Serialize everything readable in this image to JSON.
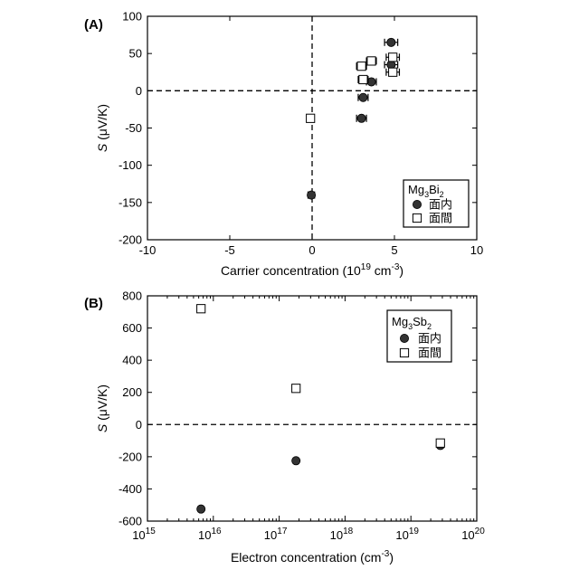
{
  "chart_data": [
    {
      "panel": "(A)",
      "type": "scatter",
      "xlabel": "Carrier concentration (10",
      "xlabel_exp": "19",
      "xlabel_unit": " cm",
      "xlabel_unit_exp": "-3",
      "xlabel_close": ")",
      "ylabel_italic": "S",
      "ylabel_unit": " (μV/K)",
      "xlim": [
        -10,
        10
      ],
      "ylim": [
        -200,
        100
      ],
      "x_ticks": [
        -10,
        -5,
        0,
        5,
        10
      ],
      "y_ticks": [
        -200,
        -150,
        -100,
        -50,
        0,
        50,
        100
      ],
      "grid": false,
      "legend_placement": "lower-right",
      "legend_title": "Mg",
      "legend_title_sub1": "3",
      "legend_title_mid": "Bi",
      "legend_title_sub2": "2",
      "series": [
        {
          "name": "面内",
          "marker": "filled-circle",
          "points": [
            {
              "x": 4.8,
              "y": 65,
              "xerr": 0.4
            },
            {
              "x": 4.8,
              "y": 35,
              "xerr": 0.4
            },
            {
              "x": 3.6,
              "y": 12,
              "xerr": 0.3
            },
            {
              "x": 3.1,
              "y": -9,
              "xerr": 0.3
            },
            {
              "x": 3.0,
              "y": -37,
              "xerr": 0.3
            },
            {
              "x": -0.05,
              "y": -140,
              "xerr": 0.2
            }
          ]
        },
        {
          "name": "面間",
          "marker": "open-square",
          "points": [
            {
              "x": 4.9,
              "y": 45,
              "xerr": 0.4
            },
            {
              "x": 4.9,
              "y": 25,
              "xerr": 0.4
            },
            {
              "x": 3.6,
              "y": 40,
              "xerr": 0.3
            },
            {
              "x": 3.0,
              "y": 33,
              "xerr": 0.3
            },
            {
              "x": 3.1,
              "y": 15,
              "xerr": 0.3
            },
            {
              "x": -0.1,
              "y": -37,
              "xerr": 0.2
            }
          ]
        }
      ]
    },
    {
      "panel": "(B)",
      "type": "scatter",
      "x_scale": "log",
      "xlabel": "Electron concentration (cm",
      "xlabel_exp": "-3",
      "xlabel_close": ")",
      "ylabel_italic": "S",
      "ylabel_unit": " (μV/K)",
      "xlim": [
        1000000000000000.0,
        1e+20
      ],
      "ylim": [
        -600,
        800
      ],
      "x_tick_exponents": [
        15,
        16,
        17,
        18,
        19,
        20
      ],
      "x_tick_base": "10",
      "y_ticks": [
        -600,
        -400,
        -200,
        0,
        200,
        400,
        600,
        800
      ],
      "grid": false,
      "legend_placement": "top-right",
      "legend_title": "Mg",
      "legend_title_sub1": "3",
      "legend_title_mid": "Sb",
      "legend_title_sub2": "2",
      "series": [
        {
          "name": "面内",
          "marker": "filled-circle",
          "points": [
            {
              "x": 6500000000000000.0,
              "y": -525
            },
            {
              "x": 1.8e+17,
              "y": -225
            },
            {
              "x": 2.8e+19,
              "y": -130
            }
          ]
        },
        {
          "name": "面間",
          "marker": "open-square",
          "points": [
            {
              "x": 6500000000000000.0,
              "y": 720
            },
            {
              "x": 1.8e+17,
              "y": 225
            },
            {
              "x": 2.8e+19,
              "y": -115
            }
          ]
        }
      ]
    }
  ]
}
